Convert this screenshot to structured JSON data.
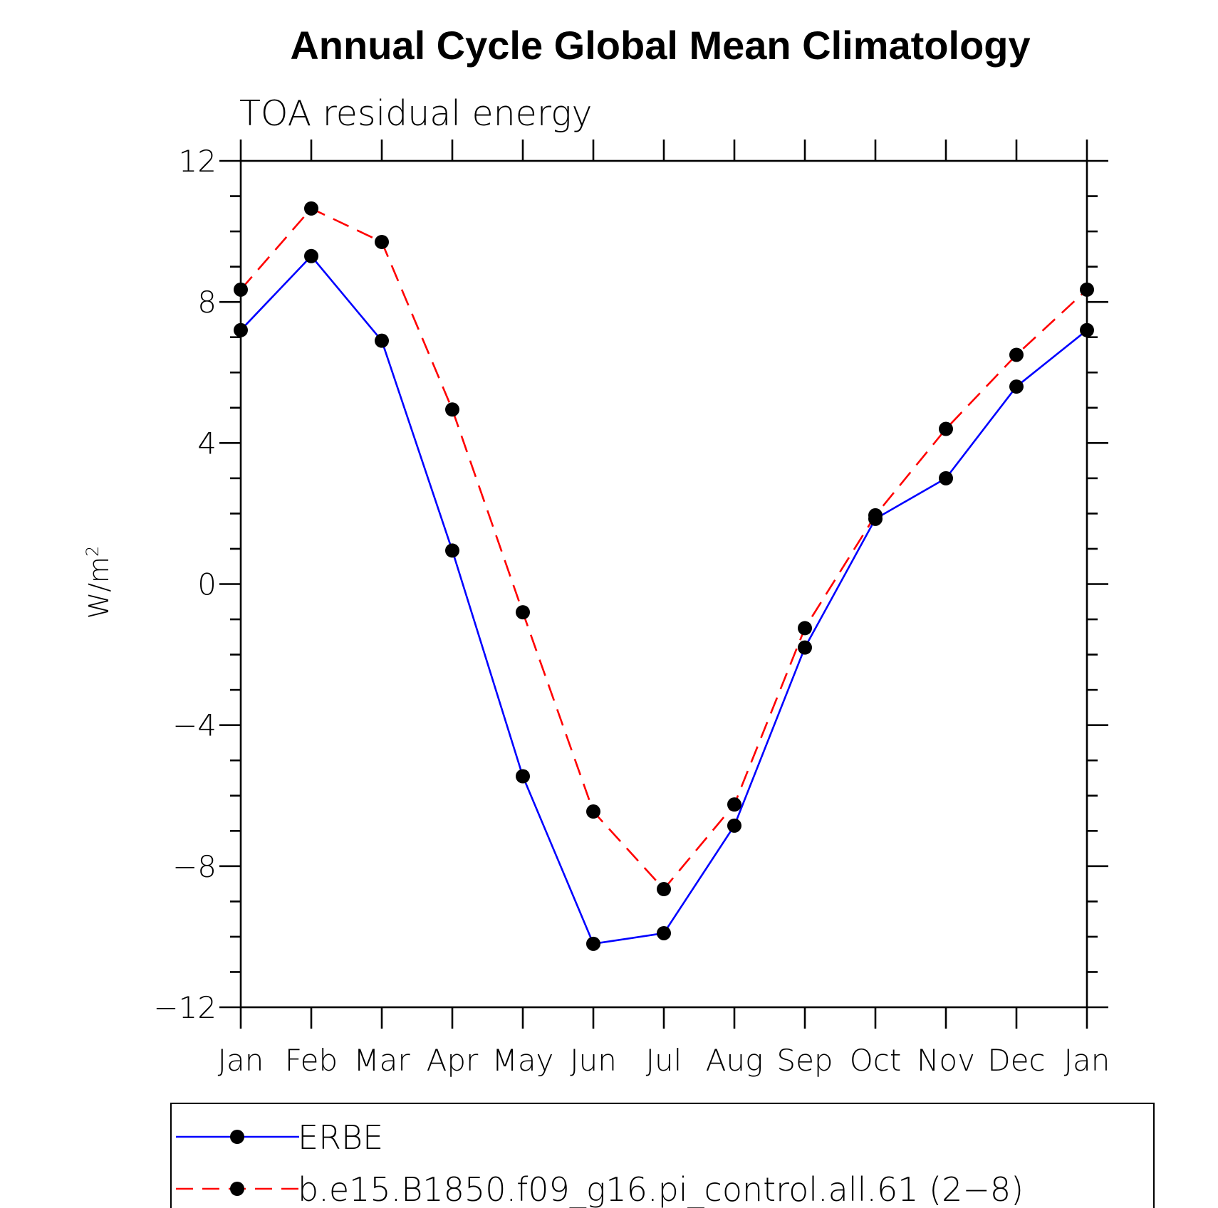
{
  "chart_data": {
    "type": "line",
    "title": "Annual Cycle Global Mean Climatology",
    "subtitle": "TOA residual energy",
    "ylabel": "W/m",
    "ylabel_sup": "2",
    "xlabel": "",
    "categories": [
      "Jan",
      "Feb",
      "Mar",
      "Apr",
      "May",
      "Jun",
      "Jul",
      "Aug",
      "Sep",
      "Oct",
      "Nov",
      "Dec",
      "Jan"
    ],
    "ylim": [
      -12,
      12
    ],
    "yticks": [
      -12,
      -8,
      -4,
      0,
      4,
      8,
      12
    ],
    "ytick_labels": [
      "−12",
      "−8",
      "−4",
      "0",
      "4",
      "8",
      "12"
    ],
    "series": [
      {
        "name": "ERBE",
        "color": "#0000ff",
        "line_style": "solid",
        "marker": "filled-circle",
        "values": [
          7.2,
          9.3,
          6.9,
          0.95,
          -5.45,
          -10.2,
          -9.9,
          -6.85,
          -1.8,
          1.85,
          3.0,
          5.6,
          7.2
        ]
      },
      {
        "name": "b.e15.B1850.f09_g16.pi_control.all.61 (2−8)",
        "color": "#ff0000",
        "line_style": "dashed",
        "marker": "filled-circle",
        "values": [
          8.35,
          10.65,
          9.7,
          4.95,
          -0.8,
          -6.45,
          -8.65,
          -6.25,
          -1.25,
          1.95,
          4.4,
          6.5,
          8.35
        ]
      }
    ],
    "grid": false,
    "legend_position": "bottom"
  }
}
